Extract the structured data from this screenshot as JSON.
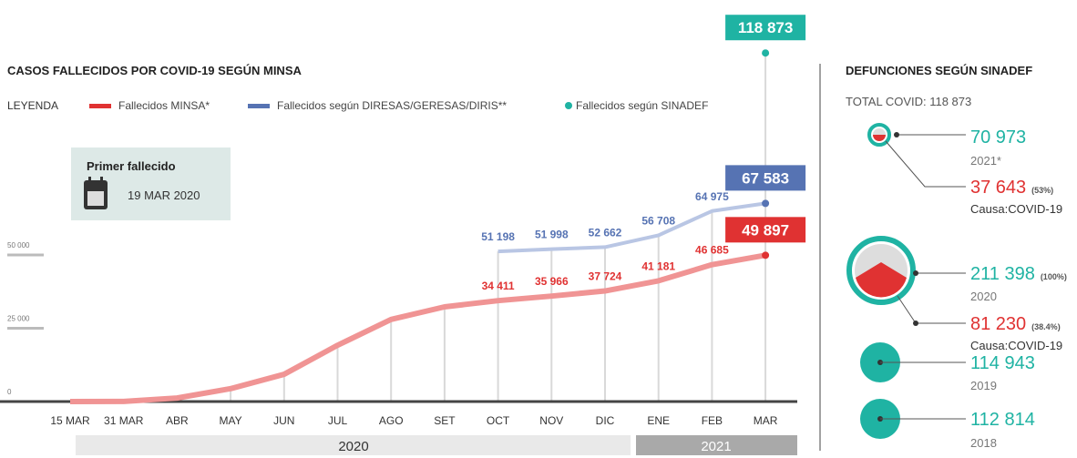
{
  "chart_data": {
    "type": "line",
    "title": "CASOS FALLECIDOS POR COVID-19 SEGÚN MINSA",
    "legend_title": "LEYENDA",
    "categories": [
      "15 MAR",
      "31 MAR",
      "ABR",
      "MAY",
      "JUN",
      "JUL",
      "AGO",
      "SET",
      "OCT",
      "NOV",
      "DIC",
      "ENE",
      "FEB",
      "MAR"
    ],
    "series": [
      {
        "name": "Fallecidos MINSA*",
        "color": "#f09494",
        "label_color": "#e03232",
        "values": [
          0,
          30,
          1200,
          4400,
          9300,
          19200,
          28000,
          32300,
          34411,
          35966,
          37724,
          41181,
          46685,
          49897
        ],
        "value_labels": [
          null,
          null,
          null,
          null,
          null,
          null,
          null,
          null,
          "34 411",
          "35 966",
          "37 724",
          "41 181",
          "46 685",
          "49 897"
        ]
      },
      {
        "name": "Fallecidos según DIRESAS/GERESAS/DIRIS**",
        "color": "#b9c6e4",
        "label_color": "#5673b3",
        "values": [
          null,
          null,
          null,
          null,
          null,
          null,
          null,
          null,
          51198,
          51998,
          52662,
          56708,
          64975,
          67583
        ],
        "value_labels": [
          null,
          null,
          null,
          null,
          null,
          null,
          null,
          null,
          "51 198",
          "51 998",
          "52 662",
          "56 708",
          "64 975",
          "67 583"
        ]
      },
      {
        "name": "Fallecidos según SINADEF",
        "color": "#1fb3a3",
        "label_color": "#1fb3a3",
        "values": [
          null,
          null,
          null,
          null,
          null,
          null,
          null,
          null,
          null,
          null,
          null,
          null,
          null,
          118873
        ],
        "value_labels": [
          null,
          null,
          null,
          null,
          null,
          null,
          null,
          null,
          null,
          null,
          null,
          null,
          null,
          "118 873"
        ]
      }
    ],
    "ylim": [
      0,
      125000
    ],
    "yticks": [
      0,
      {
        "value": 25000,
        "label": "25 000"
      },
      {
        "value": 50000,
        "label": "50 000"
      }
    ],
    "annotation": {
      "title": "Primer fallecido",
      "text": "19 MAR 2020"
    },
    "periods": [
      "2020",
      "2021"
    ]
  },
  "sinadef": {
    "title": "DEFUNCIONES SEGÚN SINADEF",
    "total": "TOTAL COVID: 118 873",
    "years": [
      {
        "total": "70 973",
        "year": "2021*",
        "covid": "37 643",
        "share": "(53%)",
        "cause": "Causa:COVID-19"
      },
      {
        "total": "211 398",
        "share_total": "(100%)",
        "year": "2020",
        "covid": "81 230",
        "share": "(38.4%)",
        "cause": "Causa:COVID-19"
      },
      {
        "total": "114 943",
        "year": "2019"
      },
      {
        "total": "112 814",
        "year": "2018"
      }
    ]
  }
}
